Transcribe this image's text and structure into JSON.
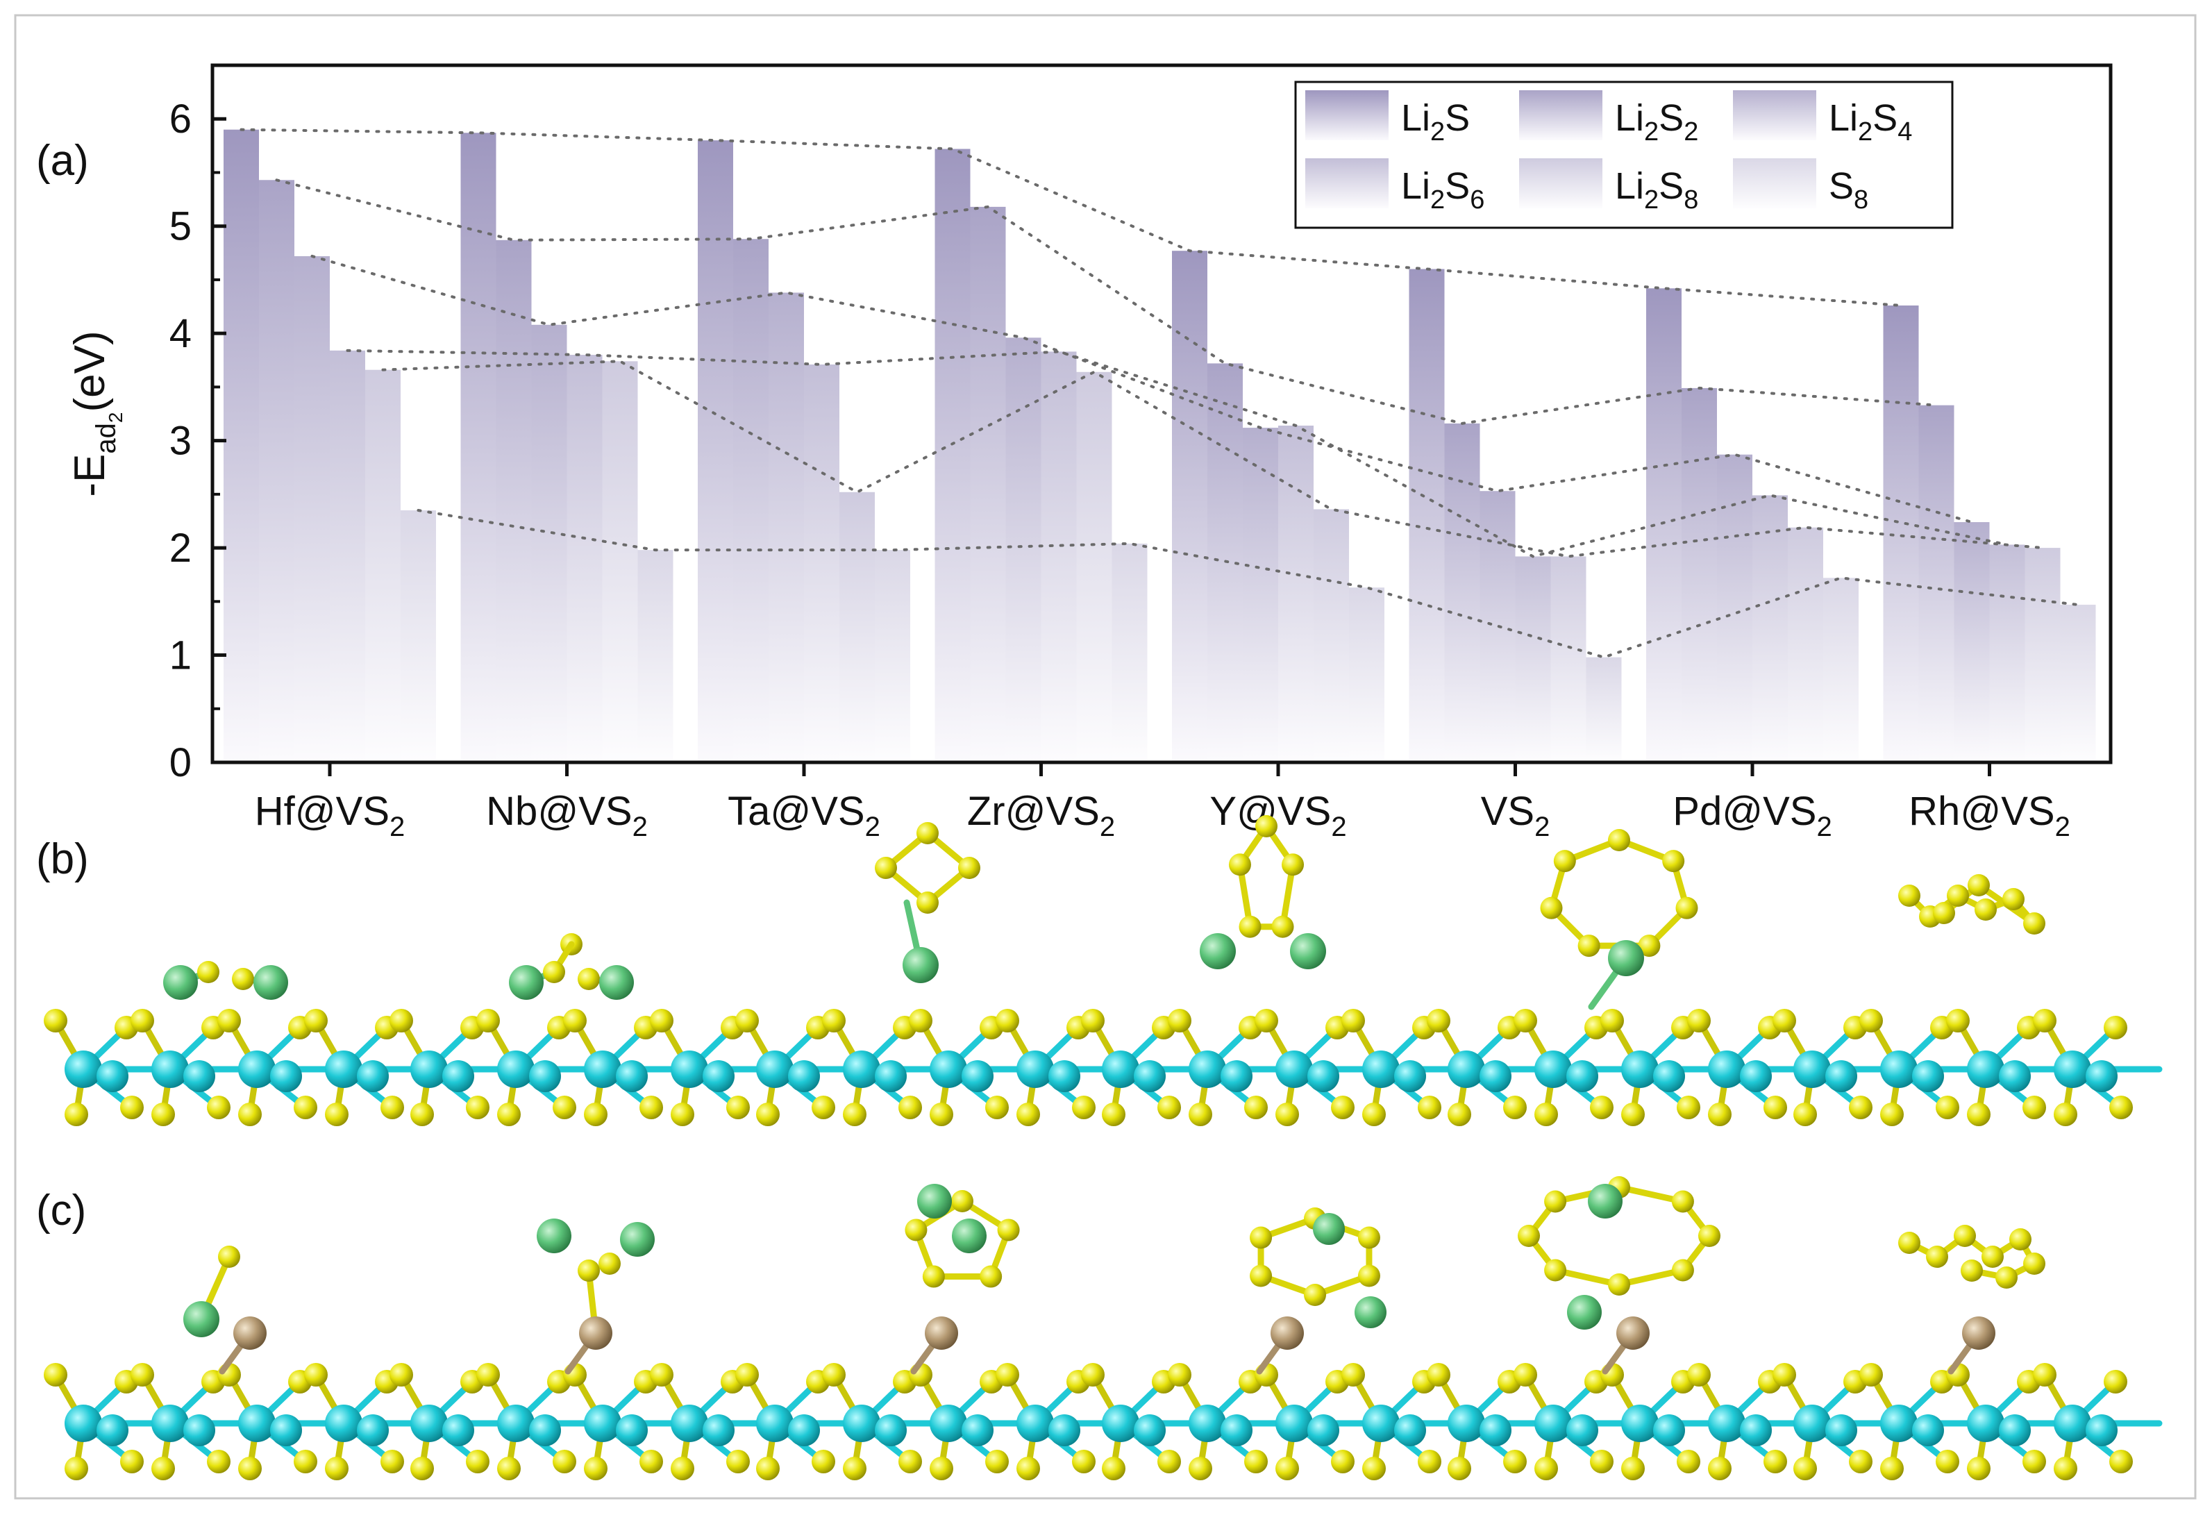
{
  "panels": {
    "a": "(a)",
    "b": "(b)",
    "c": "(c)"
  },
  "colors": {
    "bar_top": "#9e97bf",
    "bar_bottom": "#fbfafd",
    "guide_line": "#6a6a6a",
    "axis": "#111111",
    "V_atom": "#1fc9d6",
    "S_atom": "#e6e20b",
    "Li_atom": "#5cc47a",
    "dopant_atom": "#b69b74"
  },
  "chart_data": {
    "type": "bar",
    "ylabel": "-E",
    "ylabel_sub": "ad",
    "ylabel_subsub": "2",
    "ylabel_unit": "(eV)",
    "ylim": [
      0,
      6.5
    ],
    "yticks": [
      0,
      1,
      2,
      3,
      4,
      5,
      6
    ],
    "categories": [
      {
        "base": "Hf@VS",
        "sub": "2"
      },
      {
        "base": "Nb@VS",
        "sub": "2"
      },
      {
        "base": "Ta@VS",
        "sub": "2"
      },
      {
        "base": "Zr@VS",
        "sub": "2"
      },
      {
        "base": "Y@VS",
        "sub": "2"
      },
      {
        "base": "VS",
        "sub": "2"
      },
      {
        "base": "Pd@VS",
        "sub": "2"
      },
      {
        "base": "Rh@VS",
        "sub": "2"
      }
    ],
    "series": [
      {
        "name": "Li2S",
        "base": "Li",
        "sub1": "2",
        "mid": "S",
        "sub2": "",
        "opacity": 1.0,
        "values": [
          5.9,
          5.87,
          5.8,
          5.72,
          4.77,
          4.6,
          4.42,
          4.26
        ]
      },
      {
        "name": "Li2S2",
        "base": "Li",
        "sub1": "2",
        "mid": "S",
        "sub2": "2",
        "opacity": 0.88,
        "values": [
          5.43,
          4.87,
          4.88,
          5.18,
          3.72,
          3.16,
          3.49,
          3.33
        ]
      },
      {
        "name": "Li2S4",
        "base": "Li",
        "sub1": "2",
        "mid": "S",
        "sub2": "4",
        "opacity": 0.76,
        "values": [
          4.72,
          4.08,
          4.38,
          3.96,
          3.12,
          2.53,
          2.87,
          2.24
        ]
      },
      {
        "name": "Li2S6",
        "base": "Li",
        "sub1": "2",
        "mid": "S",
        "sub2": "6",
        "opacity": 0.62,
        "values": [
          3.84,
          3.8,
          3.71,
          3.83,
          3.14,
          1.92,
          2.49,
          2.03
        ]
      },
      {
        "name": "Li2S8",
        "base": "Li",
        "sub1": "2",
        "mid": "S",
        "sub2": "8",
        "opacity": 0.5,
        "values": [
          3.66,
          3.74,
          2.52,
          3.64,
          2.36,
          1.92,
          2.19,
          2.0
        ]
      },
      {
        "name": "S8",
        "base": "",
        "sub1": "",
        "mid": "S",
        "sub2": "8",
        "opacity": 0.38,
        "values": [
          2.35,
          1.98,
          1.98,
          2.04,
          1.63,
          0.98,
          1.72,
          1.47
        ]
      }
    ],
    "legend_position": "top-right",
    "grid": false
  },
  "structures": {
    "row_b": [
      "Li2S",
      "Li2S2",
      "Li2S4",
      "Li2S6",
      "Li2S8",
      "S8"
    ],
    "row_c": [
      "Li2S",
      "Li2S2",
      "Li2S4",
      "Li2S6",
      "Li2S8",
      "S8"
    ]
  }
}
